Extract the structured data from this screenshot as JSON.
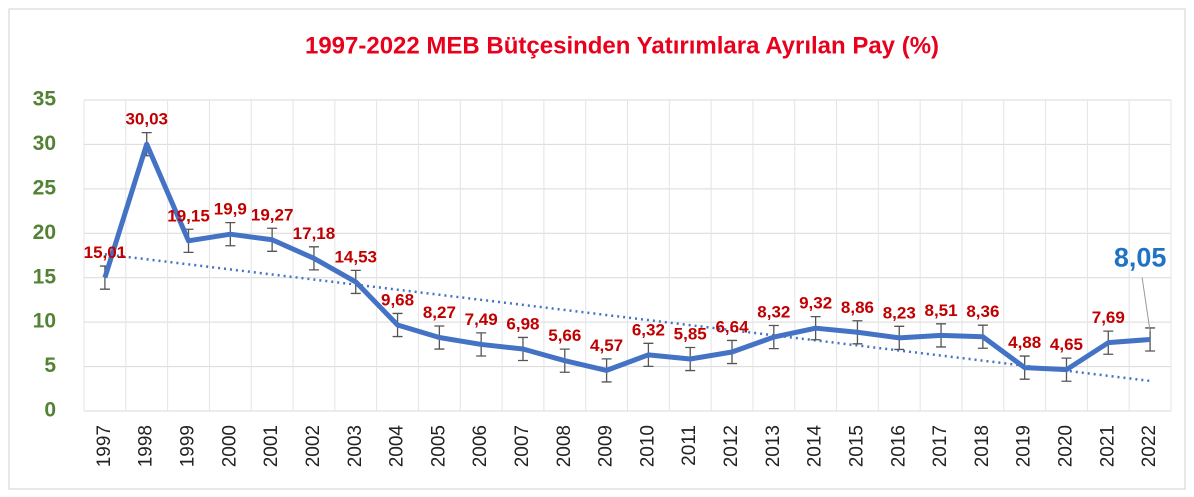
{
  "chart_data": {
    "type": "line",
    "title": "1997-2022 MEB Bütçesinden Yatırımlara Ayrılan Pay (%)",
    "categories": [
      "1997",
      "1998",
      "1999",
      "2000",
      "2001",
      "2002",
      "2003",
      "2004",
      "2005",
      "2006",
      "2007",
      "2008",
      "2009",
      "2010",
      "2011",
      "2012",
      "2013",
      "2014",
      "2015",
      "2016",
      "2017",
      "2018",
      "2019",
      "2020",
      "2021",
      "2022"
    ],
    "series": [
      {
        "name": "Pay",
        "color": "#4472c4",
        "values": [
          15.01,
          30.03,
          19.15,
          19.9,
          19.27,
          17.18,
          14.53,
          9.68,
          8.27,
          7.49,
          6.98,
          5.66,
          4.57,
          6.32,
          5.85,
          6.64,
          8.32,
          9.32,
          8.86,
          8.23,
          8.51,
          8.36,
          4.88,
          4.65,
          7.69,
          8.05
        ],
        "value_labels": [
          "15,01",
          "30,03",
          "19,15",
          "19,9",
          "19,27",
          "17,18",
          "14,53",
          "9,68",
          "8,27",
          "7,49",
          "6,98",
          "5,66",
          "4,57",
          "6,32",
          "5,85",
          "6,64",
          "8,32",
          "9,32",
          "8,86",
          "8,23",
          "8,51",
          "8,36",
          "4,88",
          "4,65",
          "7,69",
          "8,05"
        ],
        "errors": [
          1.3,
          1.3,
          1.3,
          1.3,
          1.3,
          1.3,
          1.3,
          1.3,
          1.3,
          1.3,
          1.3,
          1.3,
          1.3,
          1.3,
          1.3,
          1.3,
          1.3,
          1.3,
          1.3,
          1.3,
          1.3,
          1.3,
          1.3,
          1.3,
          1.3,
          1.3
        ]
      }
    ],
    "ylim": [
      0,
      35
    ],
    "yticks": [
      0,
      5,
      10,
      15,
      20,
      25,
      30,
      35
    ],
    "grid": true,
    "trendline": true,
    "trendline_color": "#4472c4",
    "label_color": "#c00000",
    "last_label_color": "#1f72c4",
    "title_color": "#e8001c",
    "tick_color": "#548235"
  }
}
